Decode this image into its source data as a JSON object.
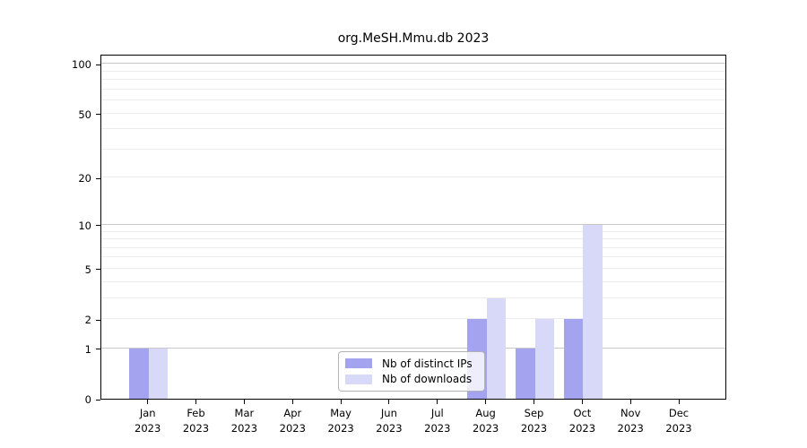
{
  "figure": {
    "title": "org.MeSH.Mmu.db 2023"
  },
  "chart_data": {
    "type": "bar",
    "title": "org.MeSH.Mmu.db 2023",
    "categories": [
      "Jan 2023",
      "Feb 2023",
      "Mar 2023",
      "Apr 2023",
      "May 2023",
      "Jun 2023",
      "Jul 2023",
      "Aug 2023",
      "Sep 2023",
      "Oct 2023",
      "Nov 2023",
      "Dec 2023"
    ],
    "series": [
      {
        "name": "Nb of distinct IPs",
        "color": "#a3a3f0",
        "values": [
          1,
          0,
          0,
          0,
          0,
          0,
          0,
          2,
          1,
          2,
          0,
          0
        ]
      },
      {
        "name": "Nb of downloads",
        "color": "#d8d8f8",
        "values": [
          1,
          0,
          0,
          0,
          0,
          0,
          0,
          3,
          2,
          10,
          0,
          0
        ]
      }
    ],
    "xlabel": "",
    "ylabel": "",
    "y_axis": {
      "scale": "log1p",
      "tick_values": [
        0,
        1,
        2,
        5,
        10,
        20,
        50,
        100
      ],
      "major_grid_values": [
        1,
        10,
        100
      ],
      "minor_grid_values": [
        2,
        3,
        4,
        5,
        6,
        7,
        8,
        9,
        20,
        30,
        40,
        50,
        60,
        70,
        80,
        90
      ],
      "ylim": [
        0,
        115
      ]
    },
    "grid": "horizontal",
    "legend_position": "lower center"
  },
  "legend": {
    "items": [
      {
        "label": "Nb of distinct IPs",
        "color": "#a3a3f0"
      },
      {
        "label": "Nb of downloads",
        "color": "#d8d8f8"
      }
    ]
  },
  "colors": {
    "bar_distinct_ips": "#a3a3f0",
    "bar_downloads": "#d8d8f8",
    "major_grid": "#c8c8c8",
    "minor_grid": "#ececec",
    "axis": "#000000",
    "legend_border": "#b3b3b3"
  }
}
